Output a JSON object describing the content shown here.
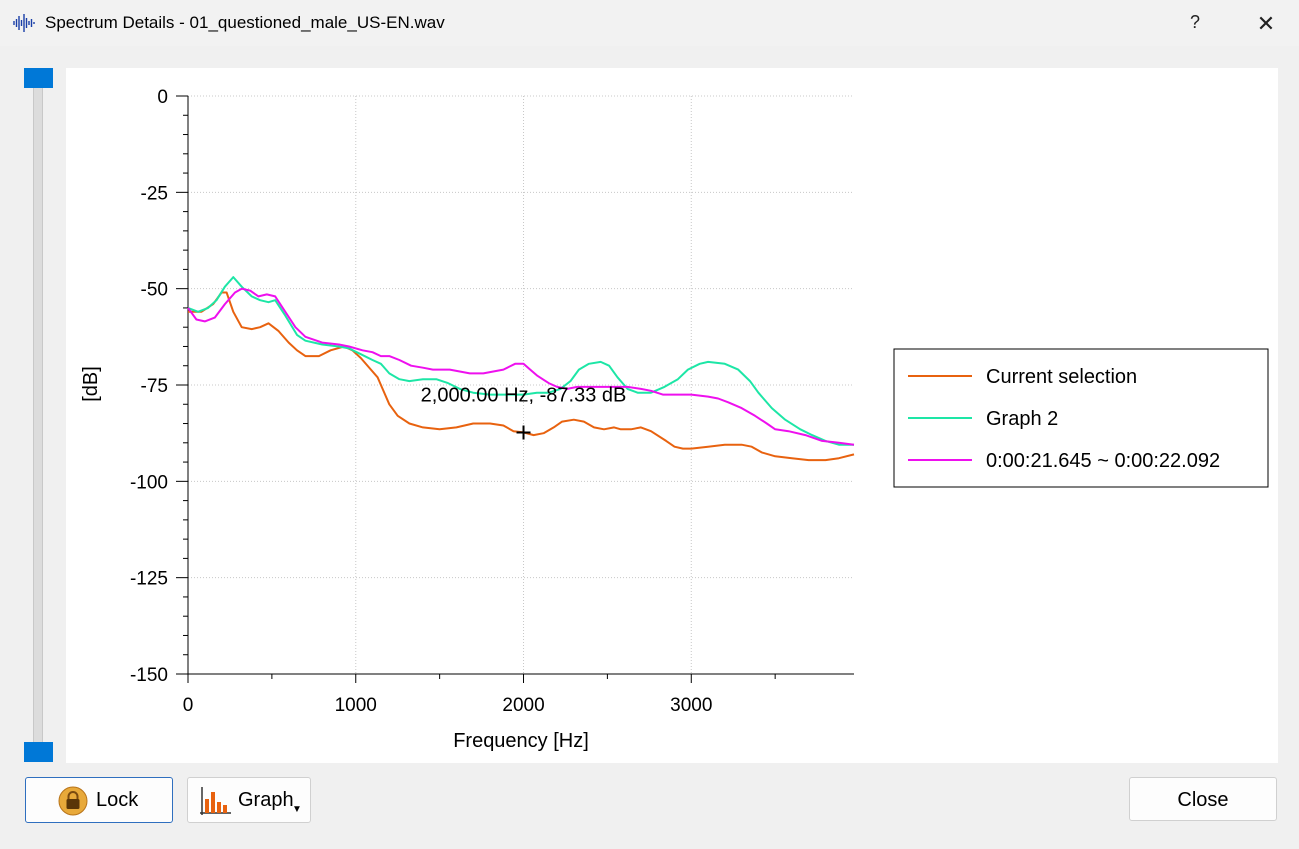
{
  "window": {
    "title": "Spectrum Details - 01_questioned_male_US-EN.wav",
    "help_label": "?",
    "close_label": "✕"
  },
  "chart_data": {
    "type": "line",
    "xlabel": "Frequency [Hz]",
    "ylabel": "[dB]",
    "xlim": [
      0,
      3970
    ],
    "ylim": [
      -150,
      0
    ],
    "x_ticks": [
      0,
      1000,
      2000,
      3000
    ],
    "x_tick_labels": [
      "0",
      "1000",
      "2000",
      "3000"
    ],
    "y_ticks": [
      0,
      -25,
      -50,
      -75,
      -100,
      -125,
      -150
    ],
    "y_tick_labels": [
      "0",
      "-25",
      "-50",
      "-75",
      "-100",
      "-125",
      "-150"
    ],
    "grid": true,
    "legend_position": "right",
    "cursor": {
      "x": 2000,
      "y": -87.33,
      "label": "2,000.00 Hz, -87.33 dB"
    },
    "series": [
      {
        "name": "Current selection",
        "color": "#e8620f",
        "points": [
          [
            0,
            -56
          ],
          [
            80,
            -56
          ],
          [
            150,
            -54
          ],
          [
            200,
            -51
          ],
          [
            230,
            -51
          ],
          [
            270,
            -56
          ],
          [
            320,
            -60
          ],
          [
            380,
            -60.5
          ],
          [
            430,
            -60
          ],
          [
            480,
            -59
          ],
          [
            540,
            -61
          ],
          [
            600,
            -64
          ],
          [
            650,
            -66
          ],
          [
            700,
            -67.5
          ],
          [
            780,
            -67.5
          ],
          [
            850,
            -66
          ],
          [
            930,
            -65
          ],
          [
            980,
            -66
          ],
          [
            1030,
            -68
          ],
          [
            1090,
            -71
          ],
          [
            1130,
            -73
          ],
          [
            1160,
            -76
          ],
          [
            1200,
            -80
          ],
          [
            1250,
            -83
          ],
          [
            1320,
            -85
          ],
          [
            1400,
            -86
          ],
          [
            1500,
            -86.5
          ],
          [
            1600,
            -86
          ],
          [
            1700,
            -85
          ],
          [
            1800,
            -85
          ],
          [
            1880,
            -85.5
          ],
          [
            1940,
            -87
          ],
          [
            2000,
            -87.3
          ],
          [
            2060,
            -88
          ],
          [
            2120,
            -87.5
          ],
          [
            2180,
            -86
          ],
          [
            2230,
            -84.5
          ],
          [
            2300,
            -84
          ],
          [
            2360,
            -84.5
          ],
          [
            2420,
            -86
          ],
          [
            2480,
            -86.5
          ],
          [
            2540,
            -86
          ],
          [
            2580,
            -86.5
          ],
          [
            2640,
            -86.5
          ],
          [
            2700,
            -86
          ],
          [
            2760,
            -87
          ],
          [
            2850,
            -89.5
          ],
          [
            2900,
            -91
          ],
          [
            2950,
            -91.5
          ],
          [
            3000,
            -91.5
          ],
          [
            3100,
            -91
          ],
          [
            3200,
            -90.5
          ],
          [
            3300,
            -90.5
          ],
          [
            3360,
            -91
          ],
          [
            3420,
            -92.5
          ],
          [
            3500,
            -93.5
          ],
          [
            3600,
            -94
          ],
          [
            3700,
            -94.5
          ],
          [
            3800,
            -94.5
          ],
          [
            3880,
            -94
          ],
          [
            3970,
            -93
          ]
        ]
      },
      {
        "name": "Graph 2",
        "color": "#1de6a6",
        "points": [
          [
            0,
            -55
          ],
          [
            60,
            -56
          ],
          [
            120,
            -55
          ],
          [
            170,
            -53
          ],
          [
            220,
            -49.5
          ],
          [
            270,
            -47
          ],
          [
            320,
            -49.5
          ],
          [
            380,
            -52
          ],
          [
            430,
            -53
          ],
          [
            480,
            -53.5
          ],
          [
            520,
            -53
          ],
          [
            580,
            -57
          ],
          [
            650,
            -62
          ],
          [
            700,
            -63.5
          ],
          [
            800,
            -64.5
          ],
          [
            900,
            -65
          ],
          [
            960,
            -65.5
          ],
          [
            1030,
            -67
          ],
          [
            1100,
            -68.5
          ],
          [
            1150,
            -69.5
          ],
          [
            1200,
            -72
          ],
          [
            1260,
            -73.5
          ],
          [
            1320,
            -74
          ],
          [
            1400,
            -73.5
          ],
          [
            1480,
            -73.5
          ],
          [
            1550,
            -74.5
          ],
          [
            1620,
            -76
          ],
          [
            1700,
            -77
          ],
          [
            1800,
            -77.5
          ],
          [
            1900,
            -77.5
          ],
          [
            2000,
            -77.5
          ],
          [
            2080,
            -77
          ],
          [
            2150,
            -77
          ],
          [
            2220,
            -76
          ],
          [
            2280,
            -74
          ],
          [
            2330,
            -71
          ],
          [
            2390,
            -69.5
          ],
          [
            2460,
            -69
          ],
          [
            2510,
            -70
          ],
          [
            2560,
            -73
          ],
          [
            2620,
            -76
          ],
          [
            2680,
            -77
          ],
          [
            2760,
            -77
          ],
          [
            2840,
            -75.5
          ],
          [
            2920,
            -73.5
          ],
          [
            2980,
            -71
          ],
          [
            3050,
            -69.5
          ],
          [
            3100,
            -69
          ],
          [
            3200,
            -69.5
          ],
          [
            3280,
            -71
          ],
          [
            3350,
            -74
          ],
          [
            3400,
            -77
          ],
          [
            3480,
            -81
          ],
          [
            3560,
            -84
          ],
          [
            3650,
            -86.5
          ],
          [
            3720,
            -88
          ],
          [
            3800,
            -89.5
          ],
          [
            3880,
            -90.5
          ],
          [
            3970,
            -90.5
          ]
        ]
      },
      {
        "name": "0:00:21.645 ~ 0:00:22.092",
        "color": "#ee10ee",
        "points": [
          [
            0,
            -55
          ],
          [
            50,
            -58
          ],
          [
            100,
            -58.5
          ],
          [
            160,
            -57.5
          ],
          [
            220,
            -54
          ],
          [
            280,
            -51
          ],
          [
            320,
            -50
          ],
          [
            370,
            -50.5
          ],
          [
            420,
            -52
          ],
          [
            470,
            -51.5
          ],
          [
            520,
            -52
          ],
          [
            580,
            -56
          ],
          [
            640,
            -60
          ],
          [
            700,
            -62.5
          ],
          [
            800,
            -64
          ],
          [
            900,
            -64.5
          ],
          [
            960,
            -65
          ],
          [
            1040,
            -66
          ],
          [
            1100,
            -66.5
          ],
          [
            1150,
            -67.5
          ],
          [
            1200,
            -67.5
          ],
          [
            1260,
            -68.5
          ],
          [
            1330,
            -70
          ],
          [
            1400,
            -70.5
          ],
          [
            1460,
            -71
          ],
          [
            1560,
            -71
          ],
          [
            1620,
            -71.5
          ],
          [
            1680,
            -72
          ],
          [
            1760,
            -72
          ],
          [
            1820,
            -71.5
          ],
          [
            1880,
            -71
          ],
          [
            1950,
            -69.5
          ],
          [
            2000,
            -69.5
          ],
          [
            2040,
            -71
          ],
          [
            2080,
            -72.5
          ],
          [
            2150,
            -74.5
          ],
          [
            2200,
            -75.5
          ],
          [
            2260,
            -76
          ],
          [
            2320,
            -75.5
          ],
          [
            2400,
            -75.5
          ],
          [
            2500,
            -75.5
          ],
          [
            2560,
            -75.5
          ],
          [
            2620,
            -75.5
          ],
          [
            2700,
            -76
          ],
          [
            2760,
            -76.5
          ],
          [
            2830,
            -77.5
          ],
          [
            2900,
            -77.5
          ],
          [
            3000,
            -77.5
          ],
          [
            3100,
            -78
          ],
          [
            3160,
            -78.5
          ],
          [
            3220,
            -79.5
          ],
          [
            3300,
            -81
          ],
          [
            3380,
            -83
          ],
          [
            3450,
            -85
          ],
          [
            3500,
            -86.5
          ],
          [
            3580,
            -87
          ],
          [
            3680,
            -88
          ],
          [
            3780,
            -89.5
          ],
          [
            3880,
            -90
          ],
          [
            3970,
            -90.5
          ]
        ]
      }
    ]
  },
  "buttons": {
    "lock_label": "Lock",
    "graph_label": "Graph",
    "close_label": "Close"
  }
}
